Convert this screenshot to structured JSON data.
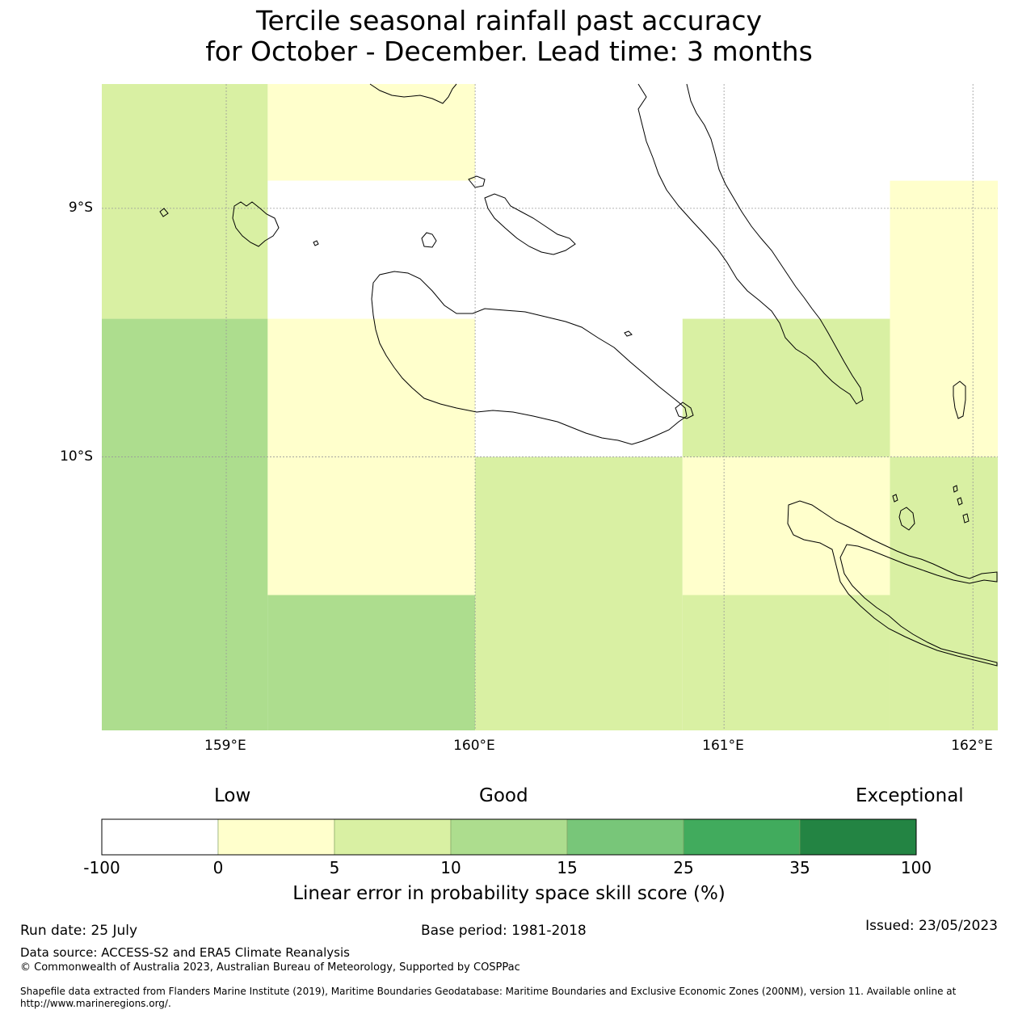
{
  "title": {
    "line1": "Tercile seasonal rainfall past accuracy",
    "line2": "for October - December. Lead time: 3 months"
  },
  "map": {
    "lon_range": [
      158.5,
      162.1
    ],
    "lat_range": [
      -8.5,
      -11.1
    ],
    "lat_ticks": [
      {
        "value": -9,
        "label": "9°S"
      },
      {
        "value": -10,
        "label": "10°S"
      }
    ],
    "lon_ticks": [
      {
        "value": 159,
        "label": "159°E"
      },
      {
        "value": 160,
        "label": "160°E"
      },
      {
        "value": 161,
        "label": "161°E"
      },
      {
        "value": 162,
        "label": "162°E"
      }
    ],
    "land_color": "#ffffff",
    "coastline_color": "#000000",
    "grid_color": "#999999"
  },
  "chart_data": {
    "type": "heatmap",
    "description_values": "Linear error in probability space skill score (%) per grid cell; cells bounded by lon/lat edges",
    "cells": [
      {
        "lon": [
          158.5,
          159.1667
        ],
        "lat": [
          -8.5,
          -9.4444
        ],
        "bin": "5-10"
      },
      {
        "lon": [
          159.1667,
          160.0
        ],
        "lat": [
          -8.5,
          -8.8889
        ],
        "bin": "0-5"
      },
      {
        "lon": [
          159.1667,
          160.0
        ],
        "lat": [
          -8.8889,
          -9.4444
        ],
        "bin": "-100-0"
      },
      {
        "lon": [
          160.0,
          161.6667
        ],
        "lat": [
          -8.5,
          -9.4444
        ],
        "bin": "-100-0"
      },
      {
        "lon": [
          161.6667,
          162.1
        ],
        "lat": [
          -8.5,
          -8.8889
        ],
        "bin": "-100-0"
      },
      {
        "lon": [
          161.6667,
          162.1
        ],
        "lat": [
          -8.8889,
          -10.0
        ],
        "bin": "0-5"
      },
      {
        "lon": [
          158.5,
          159.1667
        ],
        "lat": [
          -9.4444,
          -11.1
        ],
        "bin": "10-15"
      },
      {
        "lon": [
          159.1667,
          160.0
        ],
        "lat": [
          -9.4444,
          -10.5556
        ],
        "bin": "0-5"
      },
      {
        "lon": [
          159.1667,
          160.0
        ],
        "lat": [
          -10.5556,
          -11.1
        ],
        "bin": "10-15"
      },
      {
        "lon": [
          160.0,
          160.8333
        ],
        "lat": [
          -9.4444,
          -10.0
        ],
        "bin": "-100-0"
      },
      {
        "lon": [
          160.8333,
          161.6667
        ],
        "lat": [
          -9.4444,
          -10.0
        ],
        "bin": "5-10"
      },
      {
        "lon": [
          160.0,
          160.8333
        ],
        "lat": [
          -10.0,
          -11.1
        ],
        "bin": "5-10"
      },
      {
        "lon": [
          160.8333,
          161.6667
        ],
        "lat": [
          -10.0,
          -10.5556
        ],
        "bin": "0-5"
      },
      {
        "lon": [
          160.8333,
          161.6667
        ],
        "lat": [
          -10.5556,
          -11.1
        ],
        "bin": "5-10"
      },
      {
        "lon": [
          161.6667,
          162.1
        ],
        "lat": [
          -10.0,
          -11.1
        ],
        "bin": "5-10"
      }
    ]
  },
  "colorbar": {
    "words": {
      "low": "Low",
      "good": "Good",
      "exceptional": "Exceptional"
    },
    "bins": [
      {
        "key": "-100-0",
        "color": "#ffffff"
      },
      {
        "key": "0-5",
        "color": "#ffffcc"
      },
      {
        "key": "5-10",
        "color": "#d9f0a3"
      },
      {
        "key": "10-15",
        "color": "#addd8e"
      },
      {
        "key": "15-25",
        "color": "#78c679"
      },
      {
        "key": "25-35",
        "color": "#41ab5d"
      },
      {
        "key": "35-100",
        "color": "#238443"
      }
    ],
    "ticks": [
      "-100",
      "0",
      "5",
      "10",
      "15",
      "25",
      "35",
      "100"
    ],
    "label": "Linear error in probability space skill score (%)"
  },
  "footer": {
    "run_date": "Run date: 25 July",
    "base_period": "Base period: 1981-2018",
    "issued": "Issued: 23/05/2023",
    "data_source": "Data source: ACCESS-S2 and ERA5 Climate Reanalysis",
    "copyright": "© Commonwealth of Australia 2023, Australian Bureau of Meteorology, Supported by COSPPac",
    "shapefile": "Shapefile data extracted from Flanders Marine Institute (2019), Maritime Boundaries Geodatabase: Maritime Boundaries and Exclusive Economic Zones (200NM), version 11. Available online at http://www.marineregions.org/."
  }
}
